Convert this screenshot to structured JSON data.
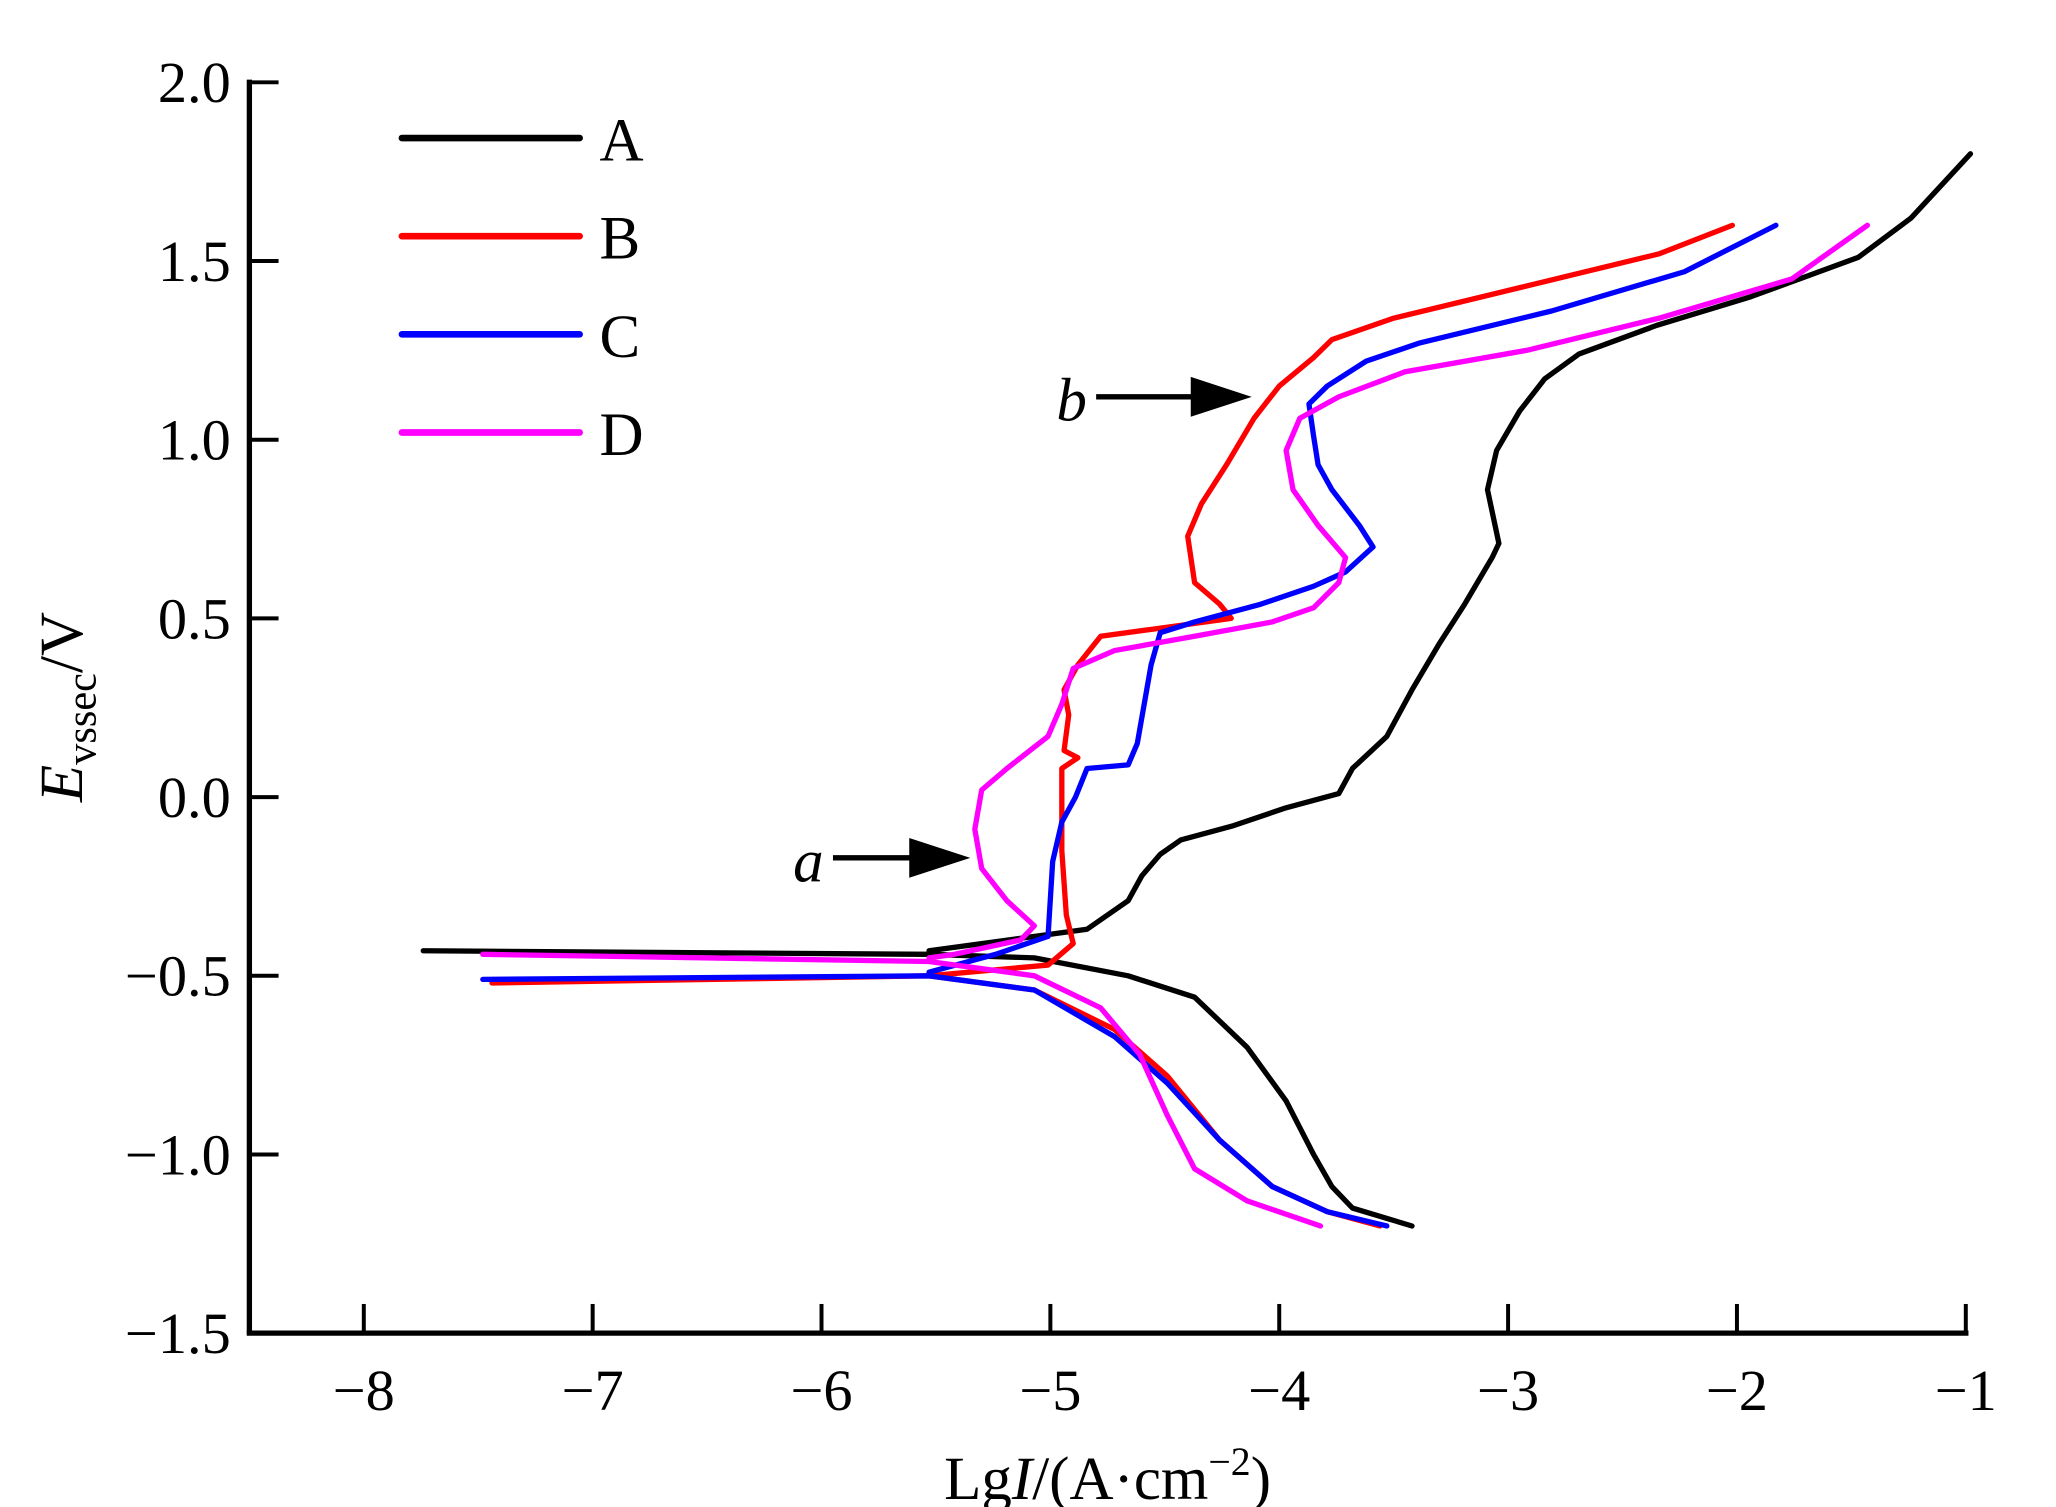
{
  "chart_data": {
    "type": "line",
    "title": "",
    "xlabel": {
      "prefix": "Lg",
      "italic": "I",
      "suffix": "/(A·cm",
      "sup": "−2",
      "close": ")"
    },
    "ylabel": {
      "italic": "E",
      "sub": "vssec",
      "suffix": "/V"
    },
    "xlim": [
      -8.5,
      -1
    ],
    "ylim": [
      -1.5,
      2.0
    ],
    "xticks": [
      -8,
      -7,
      -6,
      -5,
      -4,
      -3,
      -2,
      -1
    ],
    "xtick_labels": [
      "−8",
      "−7",
      "−6",
      "−5",
      "−4",
      "−3",
      "−2",
      "−1"
    ],
    "yticks": [
      2.0,
      1.5,
      1.0,
      0.5,
      0.0,
      -0.5,
      -1.0,
      -1.5
    ],
    "ytick_labels": [
      "2.0",
      "1.5",
      "1.0",
      "0.5",
      "0.0",
      "−0.5",
      "−1.0",
      "−1.5"
    ],
    "grid": false,
    "legend_position": "top-left",
    "annotations": [
      {
        "text": "a",
        "x": -5.95,
        "y": -0.17,
        "arrow_to": [
          -5.35,
          -0.17
        ]
      },
      {
        "text": "b",
        "x": -4.8,
        "y": 1.12,
        "arrow_to": [
          -4.12,
          1.12
        ]
      }
    ],
    "series": [
      {
        "name": "A",
        "color": "#000000",
        "cathodic": [
          [
            -7.74,
            -0.43
          ],
          [
            -5.53,
            -0.44
          ],
          [
            -5.07,
            -0.45
          ],
          [
            -4.66,
            -0.5
          ],
          [
            -4.37,
            -0.56
          ],
          [
            -4.14,
            -0.7
          ],
          [
            -3.97,
            -0.85
          ],
          [
            -3.85,
            -1.0
          ],
          [
            -3.77,
            -1.09
          ],
          [
            -3.68,
            -1.15
          ],
          [
            -3.42,
            -1.2
          ]
        ],
        "anodic": [
          [
            -5.53,
            -0.43
          ],
          [
            -4.84,
            -0.37
          ],
          [
            -4.66,
            -0.29
          ],
          [
            -4.6,
            -0.22
          ],
          [
            -4.52,
            -0.16
          ],
          [
            -4.43,
            -0.12
          ],
          [
            -4.2,
            -0.08
          ],
          [
            -3.97,
            -0.03
          ],
          [
            -3.74,
            0.01
          ],
          [
            -3.68,
            0.08
          ],
          [
            -3.53,
            0.17
          ],
          [
            -3.42,
            0.3
          ],
          [
            -3.3,
            0.43
          ],
          [
            -3.19,
            0.54
          ],
          [
            -3.07,
            0.67
          ],
          [
            -3.04,
            0.71
          ],
          [
            -3.09,
            0.86
          ],
          [
            -3.05,
            0.97
          ],
          [
            -2.95,
            1.08
          ],
          [
            -2.84,
            1.17
          ],
          [
            -2.69,
            1.24
          ],
          [
            -2.35,
            1.32
          ],
          [
            -1.94,
            1.4
          ],
          [
            -1.47,
            1.51
          ],
          [
            -1.24,
            1.62
          ],
          [
            -0.98,
            1.8
          ]
        ]
      },
      {
        "name": "B",
        "color": "#ff0000",
        "cathodic": [
          [
            -7.44,
            -0.52
          ],
          [
            -5.53,
            -0.5
          ],
          [
            -5.07,
            -0.54
          ],
          [
            -4.72,
            -0.65
          ],
          [
            -4.49,
            -0.78
          ],
          [
            -4.26,
            -0.96
          ],
          [
            -4.03,
            -1.09
          ],
          [
            -3.79,
            -1.16
          ],
          [
            -3.56,
            -1.2
          ]
        ],
        "anodic": [
          [
            -5.53,
            -0.5
          ],
          [
            -5.01,
            -0.47
          ],
          [
            -4.9,
            -0.41
          ],
          [
            -4.93,
            -0.33
          ],
          [
            -4.95,
            -0.15
          ],
          [
            -4.95,
            0.08
          ],
          [
            -4.88,
            0.11
          ],
          [
            -4.94,
            0.13
          ],
          [
            -4.92,
            0.23
          ],
          [
            -4.94,
            0.3
          ],
          [
            -4.88,
            0.37
          ],
          [
            -4.78,
            0.45
          ],
          [
            -4.55,
            0.47
          ],
          [
            -4.21,
            0.5
          ],
          [
            -4.26,
            0.54
          ],
          [
            -4.37,
            0.6
          ],
          [
            -4.4,
            0.73
          ],
          [
            -4.34,
            0.82
          ],
          [
            -4.23,
            0.93
          ],
          [
            -4.11,
            1.06
          ],
          [
            -4.0,
            1.15
          ],
          [
            -3.85,
            1.23
          ],
          [
            -3.77,
            1.28
          ],
          [
            -3.5,
            1.34
          ],
          [
            -2.92,
            1.43
          ],
          [
            -2.34,
            1.52
          ],
          [
            -2.02,
            1.6
          ]
        ]
      },
      {
        "name": "C",
        "color": "#0000ff",
        "cathodic": [
          [
            -7.48,
            -0.51
          ],
          [
            -5.53,
            -0.5
          ],
          [
            -5.07,
            -0.54
          ],
          [
            -4.72,
            -0.67
          ],
          [
            -4.49,
            -0.8
          ],
          [
            -4.26,
            -0.96
          ],
          [
            -4.03,
            -1.09
          ],
          [
            -3.79,
            -1.16
          ],
          [
            -3.53,
            -1.2
          ]
        ],
        "anodic": [
          [
            -5.53,
            -0.49
          ],
          [
            -5.24,
            -0.44
          ],
          [
            -5.01,
            -0.39
          ],
          [
            -4.99,
            -0.18
          ],
          [
            -4.95,
            -0.07
          ],
          [
            -4.89,
            0.0
          ],
          [
            -4.84,
            0.08
          ],
          [
            -4.66,
            0.09
          ],
          [
            -4.62,
            0.15
          ],
          [
            -4.59,
            0.26
          ],
          [
            -4.56,
            0.37
          ],
          [
            -4.52,
            0.46
          ],
          [
            -4.37,
            0.49
          ],
          [
            -4.08,
            0.54
          ],
          [
            -3.85,
            0.59
          ],
          [
            -3.71,
            0.63
          ],
          [
            -3.59,
            0.7
          ],
          [
            -3.65,
            0.76
          ],
          [
            -3.77,
            0.86
          ],
          [
            -3.83,
            0.93
          ],
          [
            -3.85,
            1.01
          ],
          [
            -3.87,
            1.1
          ],
          [
            -3.79,
            1.15
          ],
          [
            -3.62,
            1.22
          ],
          [
            -3.39,
            1.27
          ],
          [
            -2.81,
            1.36
          ],
          [
            -2.23,
            1.47
          ],
          [
            -1.83,
            1.6
          ]
        ]
      },
      {
        "name": "D",
        "color": "#ff00ff",
        "cathodic": [
          [
            -7.48,
            -0.44
          ],
          [
            -5.53,
            -0.46
          ],
          [
            -5.07,
            -0.5
          ],
          [
            -4.78,
            -0.59
          ],
          [
            -4.61,
            -0.72
          ],
          [
            -4.49,
            -0.89
          ],
          [
            -4.37,
            -1.04
          ],
          [
            -4.14,
            -1.13
          ],
          [
            -3.82,
            -1.2
          ]
        ],
        "anodic": [
          [
            -5.53,
            -0.45
          ],
          [
            -5.42,
            -0.44
          ],
          [
            -5.13,
            -0.4
          ],
          [
            -5.07,
            -0.36
          ],
          [
            -5.19,
            -0.29
          ],
          [
            -5.3,
            -0.2
          ],
          [
            -5.33,
            -0.09
          ],
          [
            -5.3,
            0.02
          ],
          [
            -5.19,
            0.08
          ],
          [
            -5.01,
            0.17
          ],
          [
            -4.95,
            0.26
          ],
          [
            -4.9,
            0.36
          ],
          [
            -4.72,
            0.41
          ],
          [
            -4.37,
            0.45
          ],
          [
            -4.03,
            0.49
          ],
          [
            -3.85,
            0.53
          ],
          [
            -3.74,
            0.6
          ],
          [
            -3.71,
            0.67
          ],
          [
            -3.83,
            0.76
          ],
          [
            -3.94,
            0.86
          ],
          [
            -3.97,
            0.97
          ],
          [
            -3.91,
            1.06
          ],
          [
            -3.74,
            1.12
          ],
          [
            -3.45,
            1.19
          ],
          [
            -2.92,
            1.25
          ],
          [
            -2.34,
            1.34
          ],
          [
            -1.76,
            1.45
          ],
          [
            -1.43,
            1.6
          ]
        ]
      }
    ]
  }
}
